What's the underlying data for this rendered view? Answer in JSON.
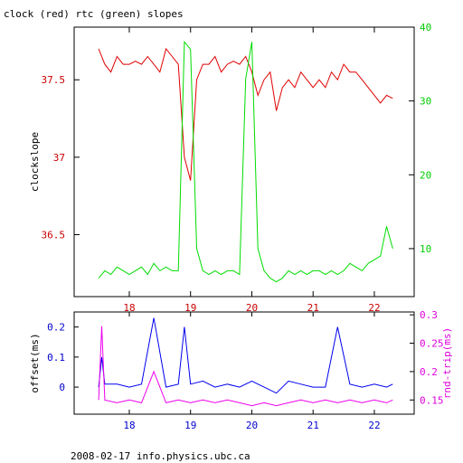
{
  "chart_data": [
    {
      "type": "line",
      "title": "clock (red) rtc (green) slopes",
      "ylabel": "clockslope",
      "xlim": [
        17.1,
        22.65
      ],
      "ylim": [
        36.1,
        37.84
      ],
      "y2lim": [
        3.5,
        40
      ],
      "x_ticks": [
        "18",
        "19",
        "20",
        "21",
        "22"
      ],
      "y_ticks": [
        "36.5",
        "37",
        "37.5"
      ],
      "y2_ticks": [
        "10",
        "20",
        "30",
        "40"
      ],
      "colors": {
        "left_axis": "#cc0000",
        "right_axis": "#00cc00"
      },
      "series": [
        {
          "color": "#e00000",
          "axis": "left",
          "x": [
            17.5,
            17.6,
            17.7,
            17.8,
            17.9,
            18.0,
            18.1,
            18.2,
            18.3,
            18.4,
            18.5,
            18.6,
            18.7,
            18.8,
            18.9,
            19.0,
            19.1,
            19.2,
            19.3,
            19.4,
            19.5,
            19.6,
            19.7,
            19.8,
            19.9,
            20.0,
            20.1,
            20.2,
            20.3,
            20.4,
            20.5,
            20.6,
            20.7,
            20.8,
            20.9,
            21.0,
            21.1,
            21.2,
            21.3,
            21.4,
            21.5,
            21.6,
            21.7,
            21.8,
            21.9,
            22.0,
            22.1,
            22.2,
            22.3
          ],
          "y": [
            37.7,
            37.6,
            37.55,
            37.65,
            37.6,
            37.6,
            37.62,
            37.6,
            37.65,
            37.6,
            37.55,
            37.7,
            37.65,
            37.6,
            37.0,
            36.85,
            37.5,
            37.6,
            37.6,
            37.65,
            37.55,
            37.6,
            37.62,
            37.6,
            37.65,
            37.55,
            37.4,
            37.5,
            37.55,
            37.3,
            37.45,
            37.5,
            37.45,
            37.55,
            37.5,
            37.45,
            37.5,
            37.45,
            37.55,
            37.5,
            37.6,
            37.55,
            37.55,
            37.5,
            37.45,
            37.4,
            37.35,
            37.4,
            37.38
          ]
        },
        {
          "color": "#00dd00",
          "axis": "right",
          "x": [
            17.5,
            17.6,
            17.7,
            17.8,
            17.9,
            18.0,
            18.1,
            18.2,
            18.3,
            18.4,
            18.5,
            18.6,
            18.7,
            18.8,
            18.9,
            19.0,
            19.1,
            19.2,
            19.3,
            19.4,
            19.5,
            19.6,
            19.7,
            19.8,
            19.9,
            20.0,
            20.1,
            20.2,
            20.3,
            20.4,
            20.5,
            20.6,
            20.7,
            20.8,
            20.9,
            21.0,
            21.1,
            21.2,
            21.3,
            21.4,
            21.5,
            21.6,
            21.7,
            21.8,
            21.9,
            22.0,
            22.1,
            22.2,
            22.3
          ],
          "y": [
            6,
            7,
            6.5,
            7.5,
            7,
            6.5,
            7,
            7.5,
            6.5,
            8,
            7,
            7.5,
            7,
            7,
            38,
            37,
            10,
            7,
            6.5,
            7,
            6.5,
            7,
            7,
            6.5,
            33,
            38,
            10,
            7,
            6,
            5.5,
            6,
            7,
            6.5,
            7,
            6.5,
            7,
            7,
            6.5,
            7,
            6.5,
            7,
            8,
            7.5,
            7,
            8,
            8.5,
            9,
            13,
            10
          ]
        }
      ]
    },
    {
      "type": "line",
      "ylabel": "offset(ms)",
      "y2label": "rnd-trip(ms)",
      "xlim": [
        17.1,
        22.65
      ],
      "ylim": [
        -0.09,
        0.25
      ],
      "y2lim": [
        0.125,
        0.305
      ],
      "x_ticks": [
        "18",
        "19",
        "20",
        "21",
        "22"
      ],
      "y_ticks": [
        "0",
        "0.1",
        "0.2"
      ],
      "y2_ticks": [
        "0.15",
        "0.2",
        "0.25",
        "0.3"
      ],
      "colors": {
        "left_axis": "#0000cc",
        "right_axis": "#dd00dd"
      },
      "series": [
        {
          "color": "#0000ee",
          "axis": "left",
          "x": [
            17.5,
            17.55,
            17.6,
            17.8,
            18.0,
            18.2,
            18.4,
            18.6,
            18.8,
            18.9,
            19.0,
            19.2,
            19.4,
            19.6,
            19.8,
            20.0,
            20.2,
            20.4,
            20.6,
            20.8,
            21.0,
            21.2,
            21.4,
            21.6,
            21.8,
            22.0,
            22.2,
            22.3
          ],
          "y": [
            0.0,
            0.1,
            0.01,
            0.01,
            0.0,
            0.01,
            0.23,
            0.0,
            0.01,
            0.2,
            0.01,
            0.02,
            0.0,
            0.01,
            0.0,
            0.02,
            0.0,
            -0.02,
            0.02,
            0.01,
            0.0,
            0.0,
            0.2,
            0.01,
            0.0,
            0.01,
            0.0,
            0.01
          ]
        },
        {
          "color": "#ee00ee",
          "axis": "right",
          "x": [
            17.5,
            17.55,
            17.6,
            17.8,
            18.0,
            18.2,
            18.4,
            18.6,
            18.8,
            19.0,
            19.2,
            19.4,
            19.6,
            19.8,
            20.0,
            20.2,
            20.4,
            20.6,
            20.8,
            21.0,
            21.2,
            21.4,
            21.6,
            21.8,
            22.0,
            22.2,
            22.3
          ],
          "y": [
            0.15,
            0.28,
            0.15,
            0.145,
            0.15,
            0.145,
            0.2,
            0.145,
            0.15,
            0.145,
            0.15,
            0.145,
            0.15,
            0.145,
            0.14,
            0.145,
            0.14,
            0.145,
            0.15,
            0.145,
            0.15,
            0.145,
            0.15,
            0.145,
            0.15,
            0.145,
            0.15
          ]
        }
      ]
    }
  ],
  "footer": "2008-02-17 info.physics.ubc.ca"
}
